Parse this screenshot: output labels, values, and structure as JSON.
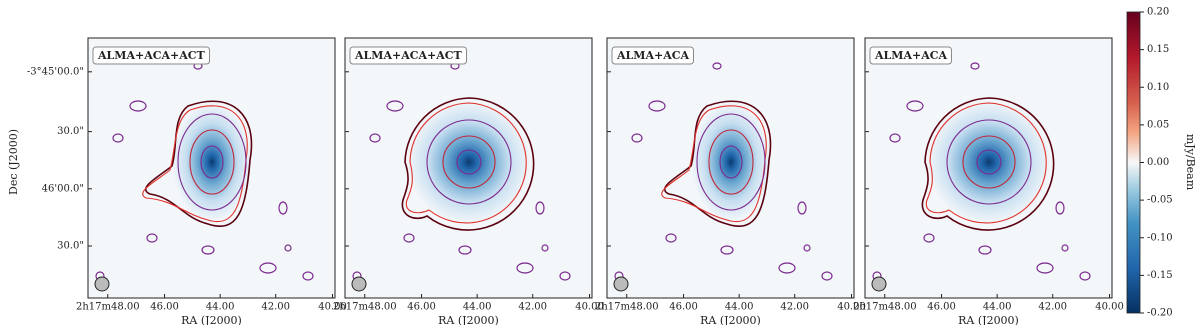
{
  "panels": [
    {
      "label": "ALMA+ACA+ACT"
    },
    {
      "label": "ALMA+ACA+ACT"
    },
    {
      "label": "ALMA+ACA"
    },
    {
      "label": "ALMA+ACA"
    }
  ],
  "x_axis": {
    "label": "RA (J2000)",
    "ticks": [
      "2h17m48.00",
      "46.00",
      "44.00",
      "42.00",
      "40.00"
    ]
  },
  "y_axis": {
    "label": "Dec (J2000)",
    "ticks": [
      "-3°45'00.0\"",
      "30.0\"",
      "46'00.0\"",
      "30.0\""
    ]
  },
  "colorbar": {
    "label": "mJy/Beam",
    "lim": [
      -0.2,
      0.2
    ],
    "ticks": [
      {
        "value": 0.2,
        "label": "0.20"
      },
      {
        "value": 0.15,
        "label": "0.15"
      },
      {
        "value": 0.1,
        "label": "0.10"
      },
      {
        "value": 0.05,
        "label": "0.05"
      },
      {
        "value": 0,
        "label": "0.00"
      },
      {
        "value": -0.05,
        "label": "-0.05"
      },
      {
        "value": -0.1,
        "label": "-0.10"
      },
      {
        "value": -0.15,
        "label": "-0.15"
      },
      {
        "value": -0.2,
        "label": "-0.20"
      }
    ]
  }
}
